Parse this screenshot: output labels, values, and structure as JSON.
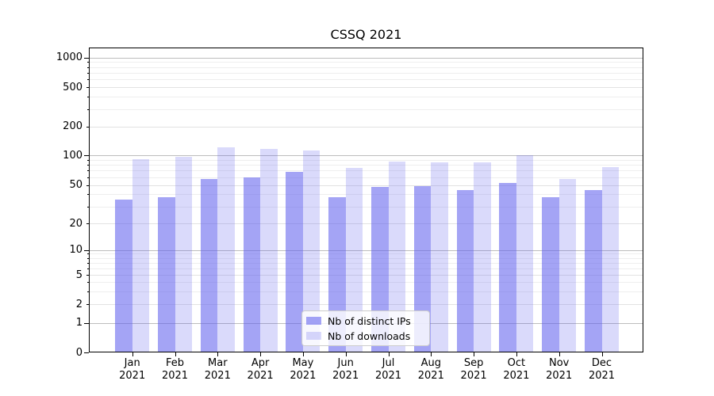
{
  "chart_data": {
    "type": "bar",
    "title": "CSSQ 2021",
    "xlabel": "",
    "ylabel": "",
    "yscale": "symlog (log above 1, linear segment 0-1)",
    "grid": "major and minor horizontal gridlines",
    "categories": [
      "Jan 2021",
      "Feb 2021",
      "Mar 2021",
      "Apr 2021",
      "May 2021",
      "Jun 2021",
      "Jul 2021",
      "Aug 2021",
      "Sep 2021",
      "Oct 2021",
      "Nov 2021",
      "Dec 2021"
    ],
    "series": [
      {
        "name": "Nb of distinct IPs",
        "color": "rgba(99,99,237,0.58)",
        "values": [
          35,
          37,
          57,
          60,
          68,
          37,
          48,
          49,
          44,
          52,
          37,
          44
        ]
      },
      {
        "name": "Nb of downloads",
        "color": "rgba(99,99,237,0.24)",
        "values": [
          91,
          96,
          122,
          116,
          112,
          75,
          87,
          85,
          85,
          100,
          57,
          76
        ]
      }
    ],
    "y_axis": {
      "labeled_ticks": [
        1000,
        500,
        200,
        100,
        50,
        20,
        10,
        5,
        2,
        1,
        0
      ],
      "major_ticks": [
        1000,
        100,
        10,
        1,
        0
      ],
      "minor_unlabeled_ticks": [
        900,
        800,
        700,
        600,
        400,
        300,
        90,
        80,
        70,
        60,
        40,
        30,
        9,
        8,
        7,
        6,
        4,
        3
      ],
      "ylim": [
        0,
        1260
      ]
    },
    "legend": {
      "position": "lower center",
      "items": [
        "Nb of distinct IPs",
        "Nb of downloads"
      ]
    }
  }
}
